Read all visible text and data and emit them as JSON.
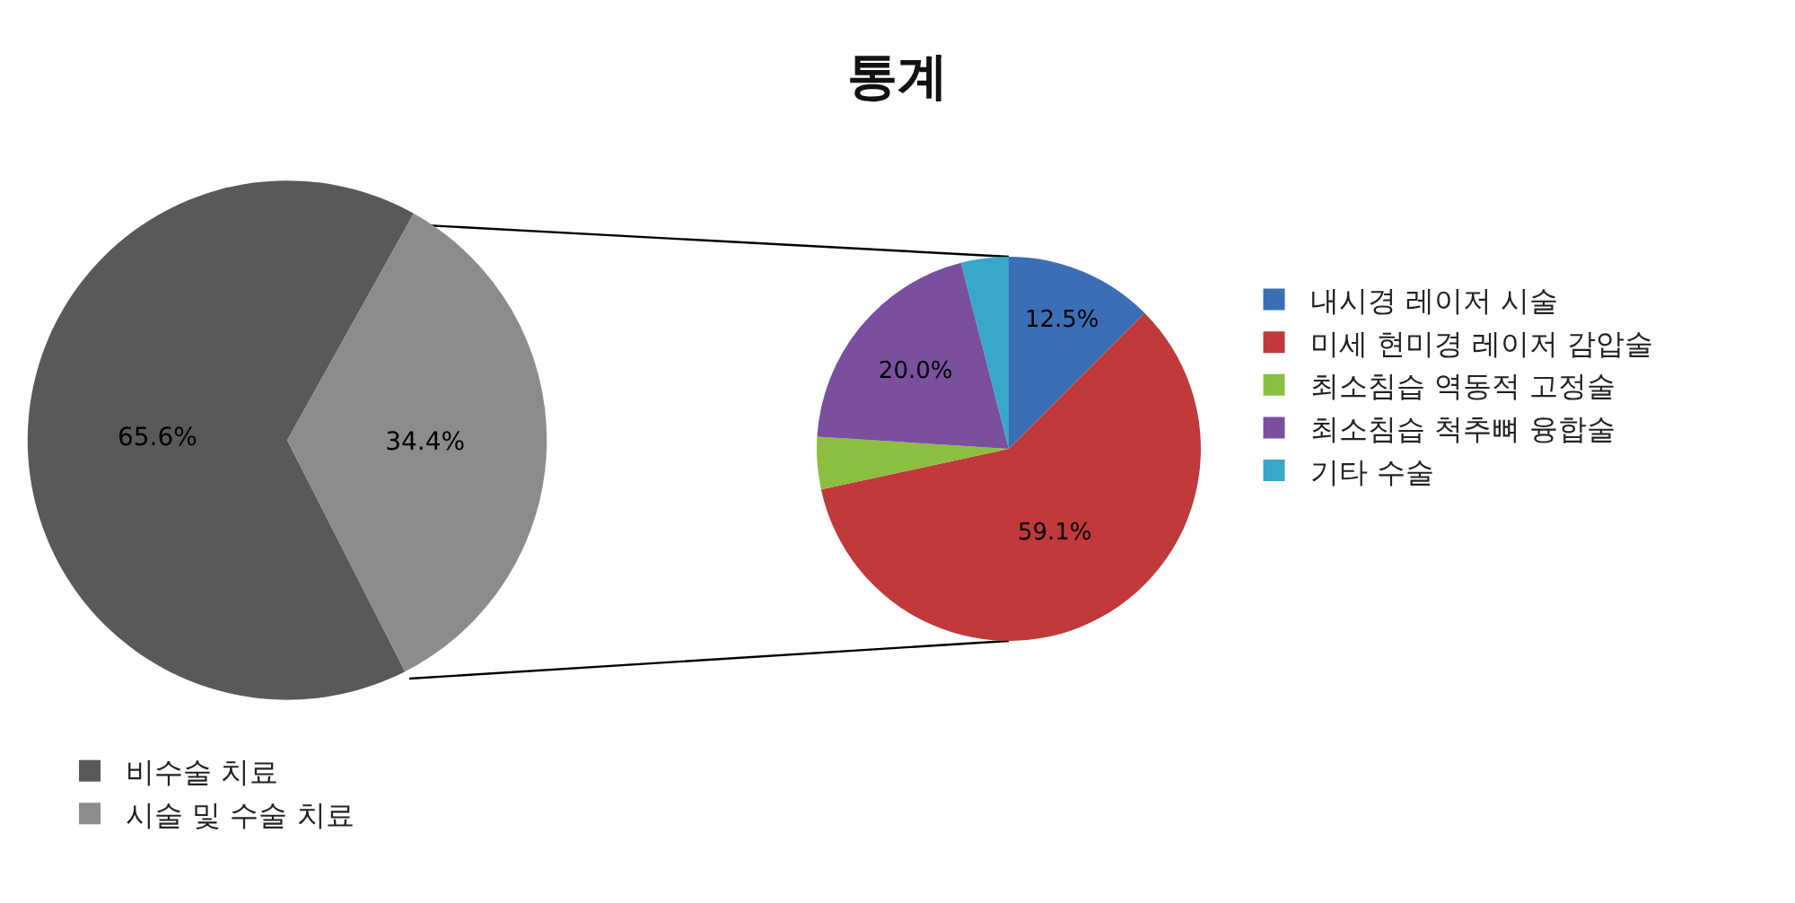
{
  "chart_data": [
    {
      "type": "pie",
      "title": "통계",
      "categories": [
        "비수술 치료",
        "시술 및 수술 치료"
      ],
      "values": [
        65.6,
        34.4
      ],
      "colors": [
        "#595959",
        "#8c8c8c"
      ],
      "value_labels": [
        "65.6%",
        "34.4%"
      ],
      "legend": "bottom left"
    },
    {
      "type": "pie",
      "categories": [
        "내시경 레이저 시술",
        "미세 현미경 레이저 감압술",
        "최소침습 역동적 고정술",
        "최소침습 척추뼈 융합술",
        "기타 수술"
      ],
      "values": [
        12.5,
        59.1,
        4.4,
        20.0,
        4.0
      ],
      "colors": [
        "#3a6fb5",
        "#c0393b",
        "#8cbf3f",
        "#7a4f9e",
        "#37a8c8"
      ],
      "value_labels": [
        "12.5%",
        "59.1%",
        null,
        "20.0%",
        null
      ],
      "legend": "right"
    }
  ]
}
